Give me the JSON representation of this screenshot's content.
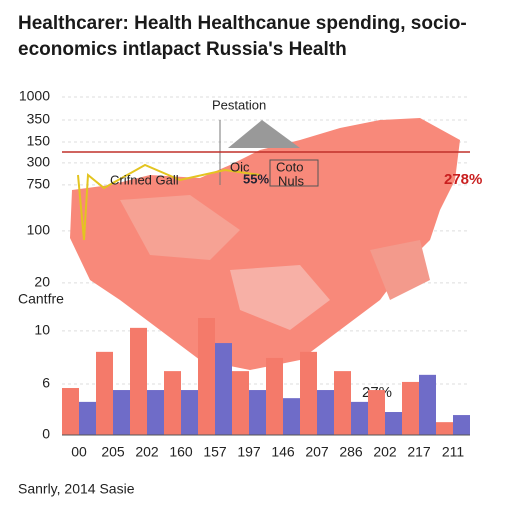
{
  "chart_data": {
    "type": "bar",
    "title_lines": [
      "Healthcarer: Health Healthcanue spending, socio-",
      "economics intlapact Russia's Health"
    ],
    "y_label": "Cantfre",
    "source": "Sanrly, 2014 Sasie",
    "annotations": [
      "Pestation",
      "Crifned Gall",
      "Oic",
      "Coto",
      "Nuls",
      "55%",
      "278%",
      "27%"
    ],
    "categories": [
      "00",
      "205",
      "202",
      "160",
      "157",
      "197",
      "146",
      "207",
      "286",
      "202",
      "217",
      "211"
    ],
    "series": [
      {
        "color": "#f47a6a",
        "values": [
          13.9,
          24.6,
          31.7,
          18.9,
          34.6,
          18.9,
          22.8,
          24.6,
          18.9,
          13.3,
          15.7,
          3.8
        ]
      },
      {
        "color": "#6f6cc8",
        "values": [
          9.8,
          13.3,
          13.3,
          13.3,
          27.2,
          13.3,
          10.9,
          13.3,
          9.8,
          6.8,
          17.8,
          5.9
        ]
      }
    ],
    "ylim": [
      0,
      100
    ],
    "yticks": [
      {
        "value": 100,
        "label": "1000"
      },
      {
        "value": 93.2,
        "label": "350"
      },
      {
        "value": 86.7,
        "label": "150"
      },
      {
        "value": 80.5,
        "label": "300"
      },
      {
        "value": 74,
        "label": "750"
      },
      {
        "value": 60.4,
        "label": "100"
      },
      {
        "value": 45,
        "label": "20"
      },
      {
        "value": 30.8,
        "label": "10"
      },
      {
        "value": 15.1,
        "label": "6"
      },
      0
    ],
    "grid": true
  }
}
